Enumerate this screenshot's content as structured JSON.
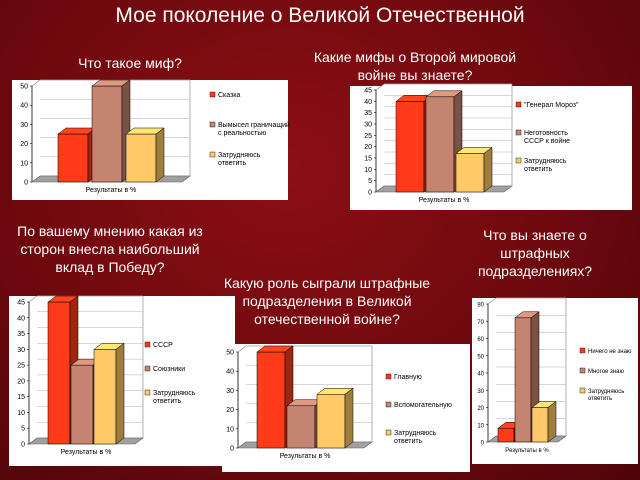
{
  "slide": {
    "title": "Мое поколение о Великой Отечественной"
  },
  "questions": {
    "q1": "Что такое миф?",
    "q2": "Какие мифы о Второй мировой войне вы знаете?",
    "q3": "По вашему мнению какая из сторон внесла наибольший вклад в Победу?",
    "q4": "Какую роль сыграли штрафные подразделения в Великой отечественной войне?",
    "q5": "Что вы знаете о штрафных подразделениях?"
  },
  "colors": {
    "red": "#ff3b1a",
    "mauve": "#c48470",
    "yellow": "#ffc966"
  },
  "chart_data": [
    {
      "type": "bar",
      "xlabel": "Результаты в %",
      "ylim": [
        0,
        50
      ],
      "yticks": [
        0,
        10,
        20,
        30,
        40,
        50
      ],
      "series": [
        {
          "name": "Сказка",
          "value": 25,
          "color": "#ff3b1a"
        },
        {
          "name": "Вымысел граничащий с реальностью",
          "value": 50,
          "color": "#c48470"
        },
        {
          "name": "Затрудняюсь ответить",
          "value": 25,
          "color": "#ffc966"
        }
      ]
    },
    {
      "type": "bar",
      "xlabel": "Результаты в %",
      "ylim": [
        0,
        45
      ],
      "yticks": [
        0,
        5,
        10,
        15,
        20,
        25,
        30,
        35,
        40,
        45
      ],
      "series": [
        {
          "name": "\"Генерал Мороз\"",
          "value": 40,
          "color": "#ff3b1a"
        },
        {
          "name": "Неготовность СССР к войне",
          "value": 42,
          "color": "#c48470"
        },
        {
          "name": "Затрудняюсь ответить",
          "value": 17,
          "color": "#ffc966"
        }
      ]
    },
    {
      "type": "bar",
      "xlabel": "Результаты в %",
      "ylim": [
        0,
        45
      ],
      "yticks": [
        0,
        5,
        10,
        15,
        20,
        25,
        30,
        35,
        40,
        45
      ],
      "series": [
        {
          "name": "СССР",
          "value": 45,
          "color": "#ff3b1a"
        },
        {
          "name": "Союзники",
          "value": 25,
          "color": "#c48470"
        },
        {
          "name": "Затрудняюсь ответить",
          "value": 30,
          "color": "#ffc966"
        }
      ]
    },
    {
      "type": "bar",
      "xlabel": "Результаты в %",
      "ylim": [
        0,
        50
      ],
      "yticks": [
        0,
        10,
        20,
        30,
        40,
        50
      ],
      "series": [
        {
          "name": "Главную",
          "value": 50,
          "color": "#ff3b1a"
        },
        {
          "name": "Вспомогательную",
          "value": 22,
          "color": "#c48470"
        },
        {
          "name": "Затрудняюсь ответить",
          "value": 28,
          "color": "#ffc966"
        }
      ]
    },
    {
      "type": "bar",
      "xlabel": "Результаты в %",
      "ylim": [
        0,
        80
      ],
      "yticks": [
        0,
        10,
        20,
        30,
        40,
        50,
        60,
        70,
        80
      ],
      "series": [
        {
          "name": "Ничего не знаю",
          "value": 8,
          "color": "#ff3b1a"
        },
        {
          "name": "Многое знаю",
          "value": 72,
          "color": "#c48470"
        },
        {
          "name": "Затрудняюсь ответить",
          "value": 20,
          "color": "#ffc966"
        }
      ]
    }
  ]
}
